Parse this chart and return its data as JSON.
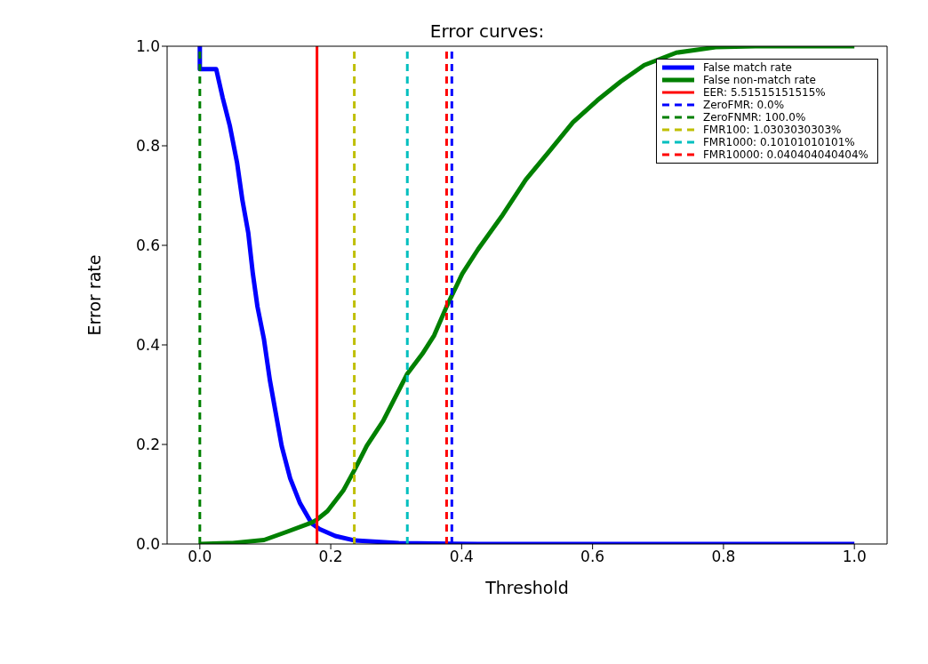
{
  "chart_data": {
    "type": "line",
    "title": "Error curves:",
    "xlabel": "Threshold",
    "ylabel": "Error rate",
    "xlim": [
      -0.05,
      1.05
    ],
    "ylim": [
      0,
      1
    ],
    "xticks": [
      {
        "value": 0,
        "label": "0.0"
      },
      {
        "value": 0.2,
        "label": "0.2"
      },
      {
        "value": 0.4,
        "label": "0.4"
      },
      {
        "value": 0.6,
        "label": "0.6"
      },
      {
        "value": 0.8,
        "label": "0.8"
      },
      {
        "value": 1,
        "label": "1.0"
      }
    ],
    "yticks": [
      {
        "value": 0,
        "label": "0.0"
      },
      {
        "value": 0.2,
        "label": "0.2"
      },
      {
        "value": 0.4,
        "label": "0.4"
      },
      {
        "value": 0.6,
        "label": "0.6"
      },
      {
        "value": 0.8,
        "label": "0.8"
      },
      {
        "value": 1,
        "label": "1.0"
      }
    ],
    "legend": "top right",
    "marker": "none",
    "line_style": "solid",
    "series": [
      {
        "name": "False match rate",
        "color": "#0000ff",
        "x": [
          0,
          0,
          0.025,
          0.035,
          0.046,
          0.057,
          0.065,
          0.074,
          0.081,
          0.088,
          0.098,
          0.107,
          0.116,
          0.125,
          0.138,
          0.153,
          0.171,
          0.183,
          0.207,
          0.237,
          0.304,
          0.425,
          1.0
        ],
        "values": [
          1.0,
          0.954,
          0.954,
          0.896,
          0.839,
          0.765,
          0.691,
          0.625,
          0.543,
          0.477,
          0.411,
          0.329,
          0.263,
          0.197,
          0.132,
          0.082,
          0.041,
          0.03,
          0.016,
          0.007,
          0.002,
          0,
          0
        ]
      },
      {
        "name": "False non-match rate",
        "color": "#008000",
        "x": [
          0,
          0.05,
          0.098,
          0.134,
          0.171,
          0.179,
          0.195,
          0.219,
          0.236,
          0.255,
          0.28,
          0.317,
          0.34,
          0.358,
          0.377,
          0.401,
          0.425,
          0.461,
          0.498,
          0.534,
          0.57,
          0.607,
          0.643,
          0.679,
          0.728,
          0.788,
          0.849,
          1.0
        ],
        "values": [
          0,
          0.002,
          0.008,
          0.025,
          0.043,
          0.049,
          0.066,
          0.107,
          0.148,
          0.197,
          0.247,
          0.342,
          0.382,
          0.419,
          0.477,
          0.543,
          0.592,
          0.658,
          0.732,
          0.789,
          0.847,
          0.891,
          0.929,
          0.962,
          0.987,
          0.998,
          1.0,
          1.0
        ]
      },
      {
        "name": "EER: 5.51515151515%",
        "color": "#ff0000",
        "x": [
          0.179,
          0.179
        ],
        "values": [
          0,
          1
        ]
      },
      {
        "name": "ZeroFMR: 0.0%",
        "color": "#0000ff",
        "line_style": "dashed",
        "x": [
          0.385,
          0.385
        ],
        "values": [
          0,
          1
        ]
      },
      {
        "name": "ZeroFNMR: 100.0%",
        "color": "#008000",
        "line_style": "dashed",
        "x": [
          0,
          0
        ],
        "values": [
          0,
          1
        ]
      },
      {
        "name": "FMR100: 1.0303030303%",
        "color": "#bfbf00",
        "line_style": "dashed",
        "x": [
          0.236,
          0.236
        ],
        "values": [
          0,
          1
        ]
      },
      {
        "name": "FMR1000: 0.10101010101%",
        "color": "#00bfbf",
        "line_style": "dashed",
        "x": [
          0.317,
          0.317
        ],
        "values": [
          0,
          1
        ]
      },
      {
        "name": "FMR10000: 0.040404040404%",
        "color": "#ff0000",
        "line_style": "dashed",
        "x": [
          0.377,
          0.377
        ],
        "values": [
          0,
          1
        ]
      }
    ]
  }
}
